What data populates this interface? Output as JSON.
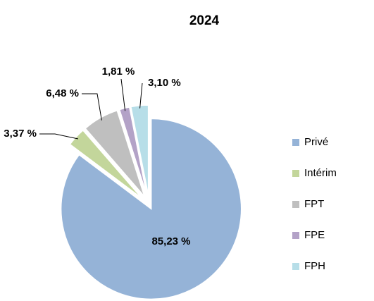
{
  "chart_data": {
    "type": "pie",
    "title": "2024",
    "categories": [
      "Privé",
      "Intérim",
      "FPT",
      "FPE",
      "FPH"
    ],
    "values": [
      85.23,
      3.37,
      6.48,
      1.81,
      3.1
    ],
    "value_labels": [
      "85,23 %",
      "3,37 %",
      "6,48 %",
      "1,81 %",
      "3,10 %"
    ],
    "colors": [
      "#95b3d7",
      "#c3d69b",
      "#bfbfbf",
      "#b3a2c7",
      "#b7dee8"
    ],
    "legend": "right"
  }
}
